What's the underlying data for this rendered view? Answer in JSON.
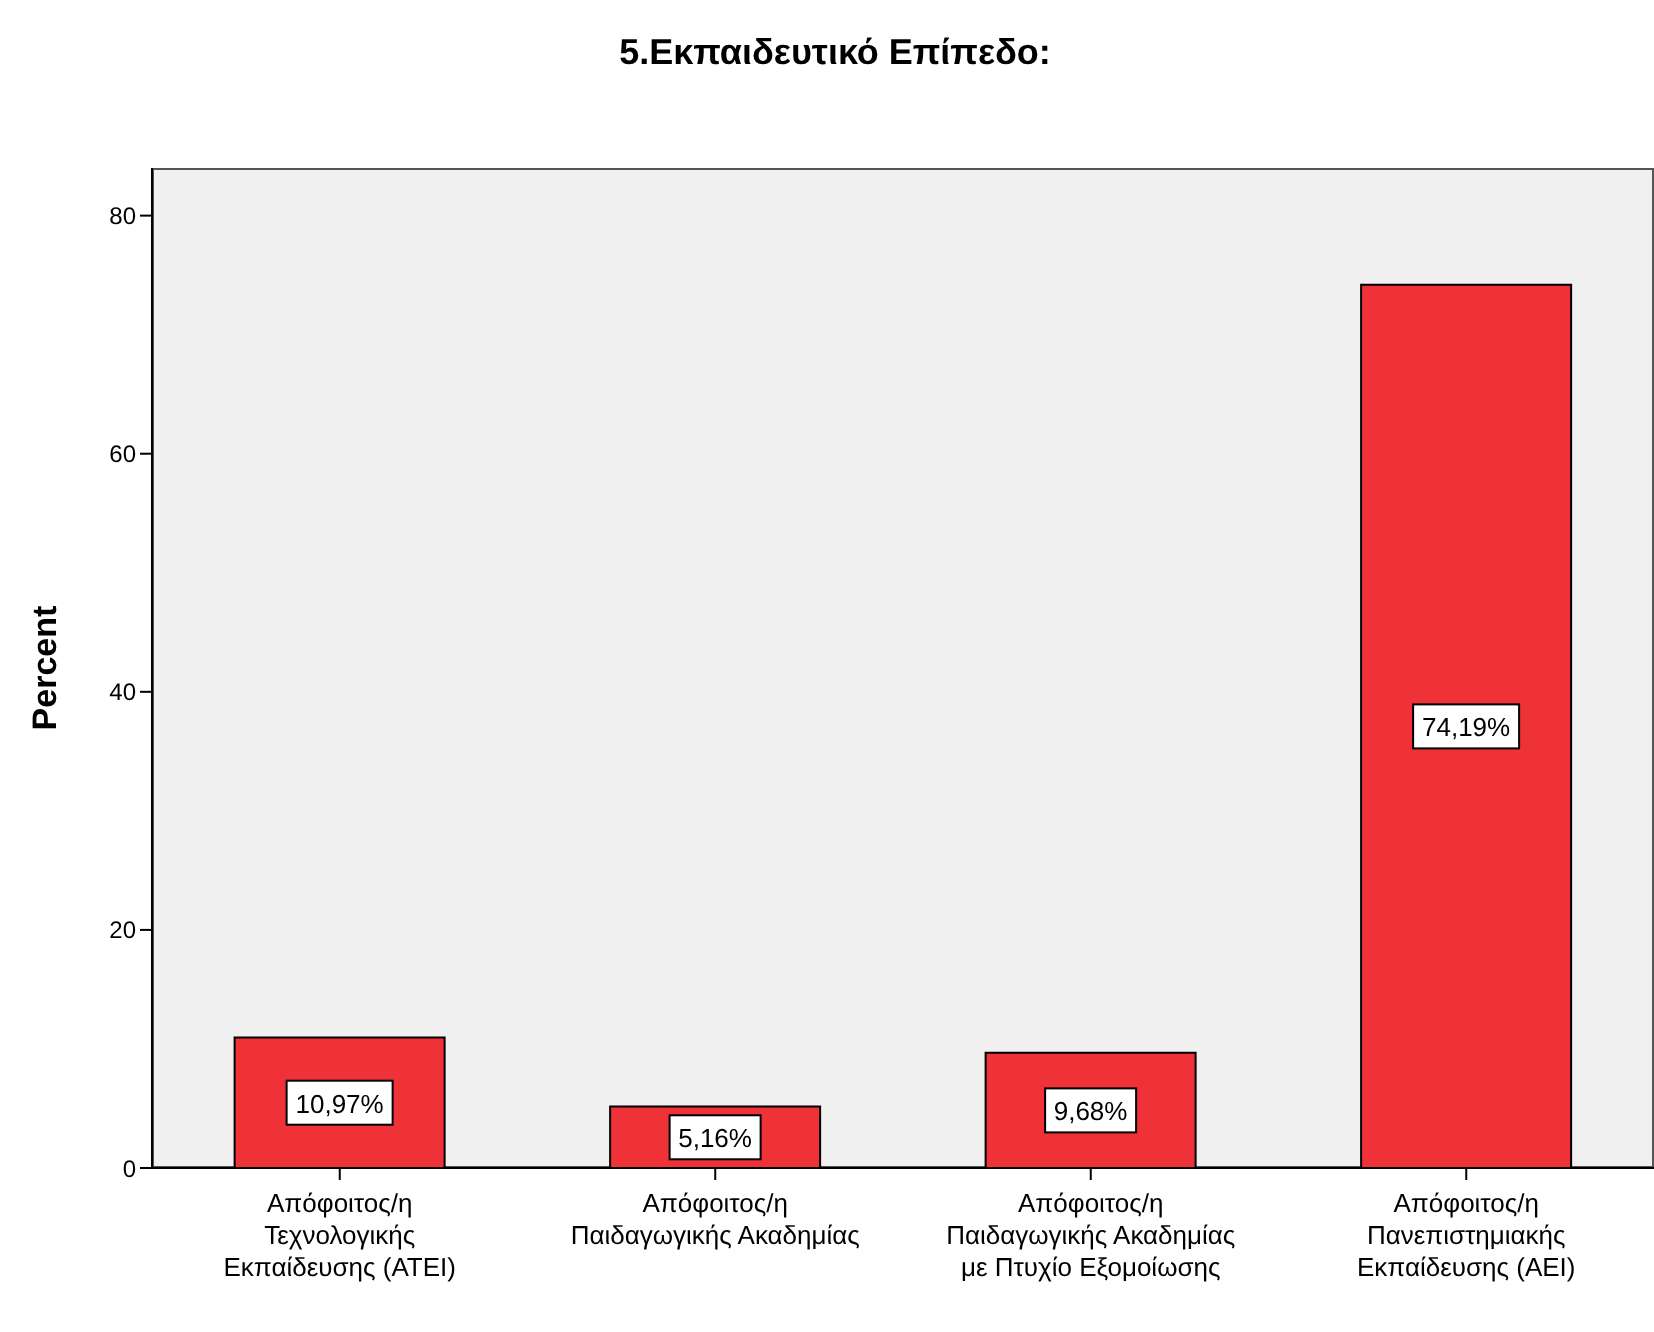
{
  "chart_data": {
    "type": "bar",
    "title": "5.Εκπαιδευτικό Επίπεδο:",
    "ylabel": "Percent",
    "categories": [
      "Απόφοιτος/η\nΤεχνολογικής\nΕκπαίδευσης (ΑΤΕΙ)",
      "Απόφοιτος/η\nΠαιδαγωγικής Ακαδημίας",
      "Απόφοιτος/η\nΠαιδαγωγικής Ακαδημίας\nμε Πτυχίο Εξομοίωσης",
      "Απόφοιτος/η\nΠανεπιστημιακής\nΕκπαίδευσης (ΑΕΙ)"
    ],
    "values": [
      10.97,
      5.16,
      9.68,
      74.19
    ],
    "value_labels": [
      "10,97%",
      "5,16%",
      "9,68%",
      "74,19%"
    ],
    "color": "#ee3237",
    "ylim": [
      0,
      84
    ],
    "yticks": [
      0,
      20,
      40,
      60,
      80
    ]
  }
}
